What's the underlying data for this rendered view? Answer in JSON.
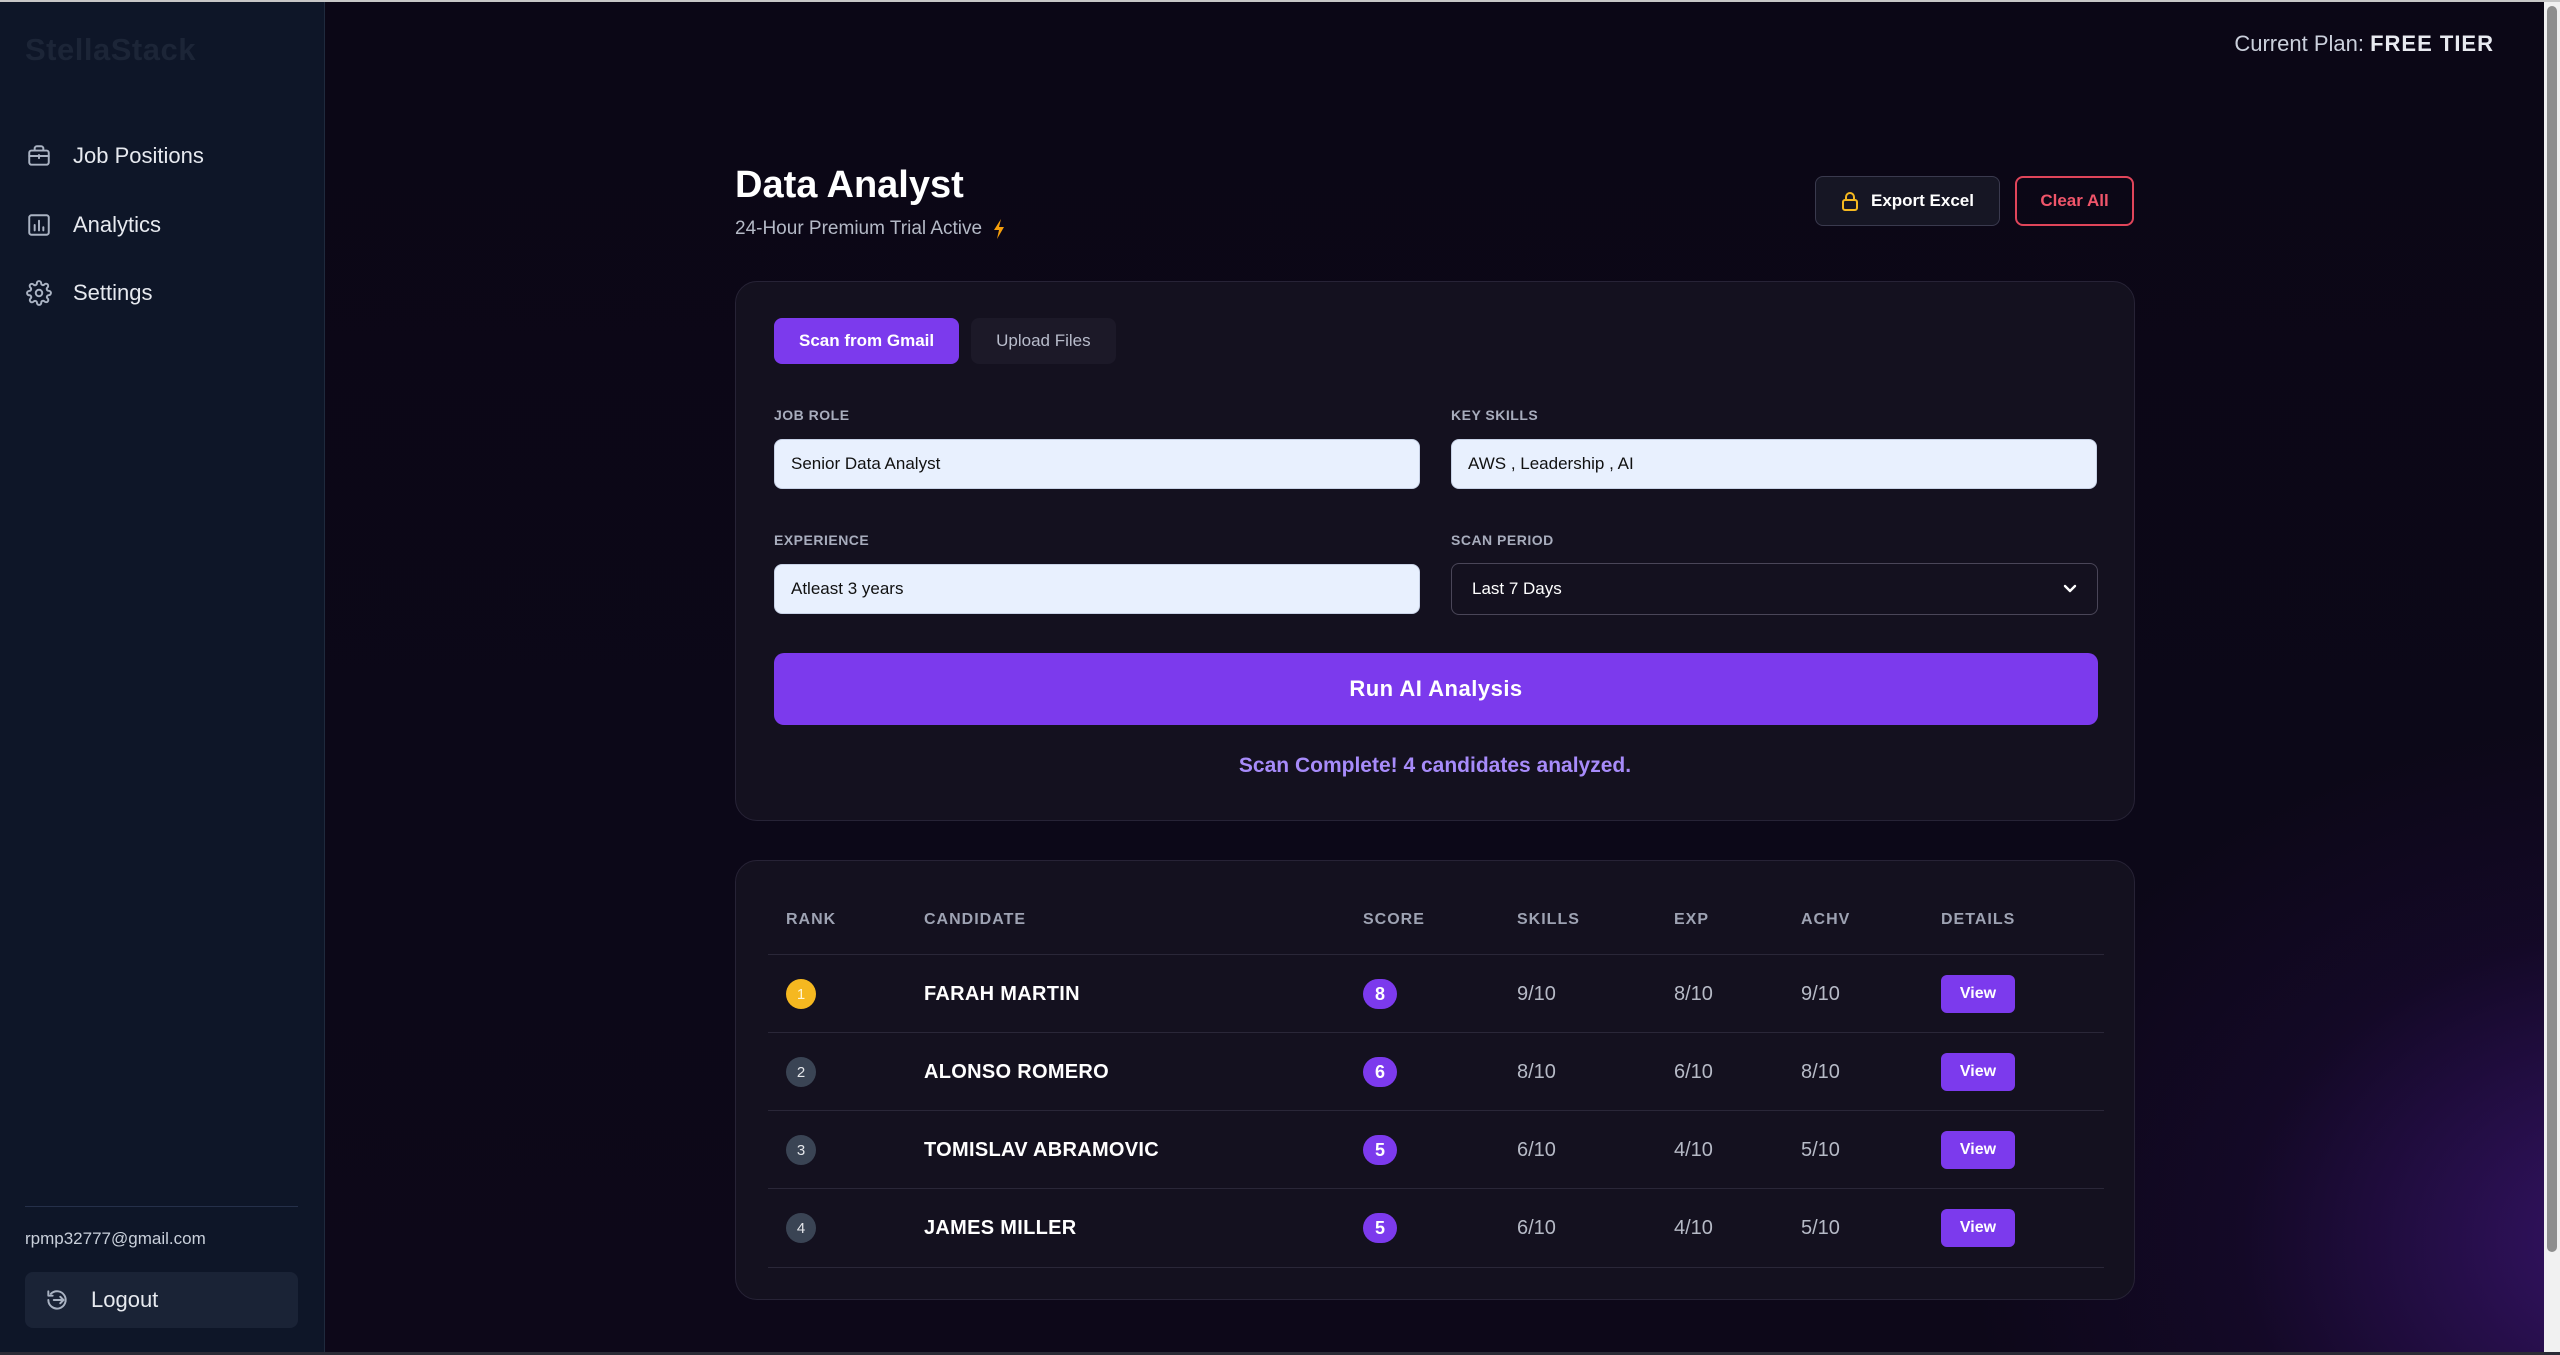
{
  "app": {
    "logo": "StellaStack"
  },
  "sidebar": {
    "items": [
      {
        "label": "Job Positions",
        "icon": "briefcase-icon"
      },
      {
        "label": "Analytics",
        "icon": "bar-chart-icon"
      },
      {
        "label": "Settings",
        "icon": "gear-icon"
      }
    ],
    "email": "rpmp32777@gmail.com",
    "logout_label": "Logout"
  },
  "header": {
    "plan_prefix": "Current Plan:",
    "plan_name": "FREE TIER",
    "title": "Data Analyst",
    "subtitle": "24-Hour Premium Trial Active",
    "export_label": "Export Excel",
    "clear_label": "Clear All"
  },
  "form": {
    "tabs": [
      {
        "label": "Scan from Gmail",
        "active": true
      },
      {
        "label": "Upload Files",
        "active": false
      }
    ],
    "job_role": {
      "label": "JOB ROLE",
      "value": "Senior Data Analyst"
    },
    "key_skills": {
      "label": "KEY SKILLS",
      "value": "AWS , Leadership , AI"
    },
    "experience": {
      "label": "EXPERIENCE",
      "value": "Atleast 3 years"
    },
    "scan_period": {
      "label": "SCAN PERIOD",
      "value": "Last 7 Days"
    },
    "run_label": "Run AI Analysis",
    "status": "Scan Complete! 4 candidates analyzed."
  },
  "results": {
    "columns": [
      "RANK",
      "CANDIDATE",
      "SCORE",
      "SKILLS",
      "EXP",
      "ACHV",
      "DETAILS"
    ],
    "rows": [
      {
        "rank": "1",
        "name": "FARAH MARTIN",
        "score": "8",
        "skills": "9/10",
        "exp": "8/10",
        "achv": "9/10",
        "action": "View"
      },
      {
        "rank": "2",
        "name": "ALONSO ROMERO",
        "score": "6",
        "skills": "8/10",
        "exp": "6/10",
        "achv": "8/10",
        "action": "View"
      },
      {
        "rank": "3",
        "name": "TOMISLAV ABRAMOVIC",
        "score": "5",
        "skills": "6/10",
        "exp": "4/10",
        "achv": "5/10",
        "action": "View"
      },
      {
        "rank": "4",
        "name": "JAMES MILLER",
        "score": "5",
        "skills": "6/10",
        "exp": "4/10",
        "achv": "5/10",
        "action": "View"
      }
    ]
  },
  "colors": {
    "accent": "#7c3aed",
    "danger": "#e0455a",
    "gold": "#f5b820"
  }
}
